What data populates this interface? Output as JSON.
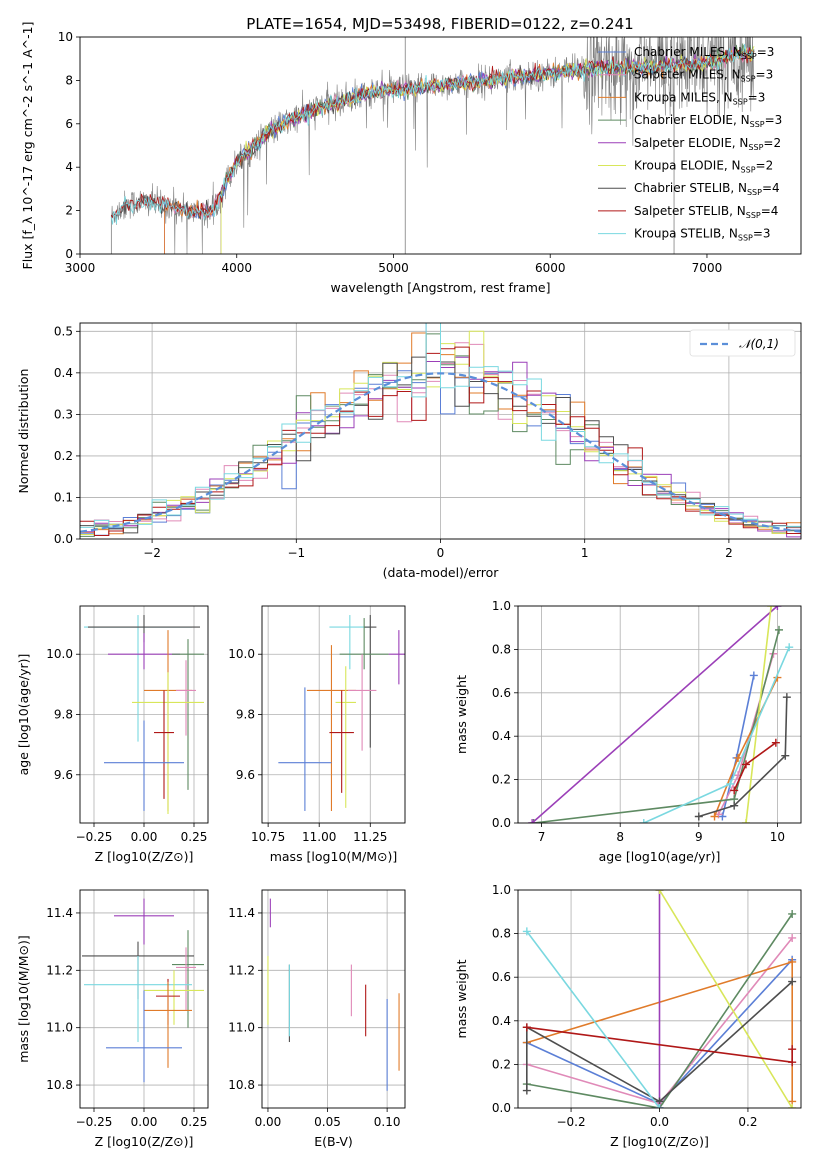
{
  "title": "PLATE=1654, MJD=53498, FIBERID=0122, z=0.241",
  "colors": {
    "chabrier_miles": "#5b7fd6",
    "salpeter_miles": "#e08ab8",
    "kroupa_miles": "#e07b2a",
    "chabrier_elodie": "#5e8a62",
    "salpeter_elodie": "#9b3fb8",
    "kroupa_elodie": "#d8e65a",
    "chabrier_stelib": "#4e4e4e",
    "salpeter_stelib": "#b01818",
    "kroupa_stelib": "#7ad8e0",
    "data_spectrum": "#808080",
    "normal_curve": "#5b8fd9",
    "grid": "#b0b0b0"
  },
  "chart_data": [
    {
      "id": "spectrum",
      "type": "line",
      "xlabel": "wavelength [Angstrom, rest frame]",
      "ylabel": "Flux [f_λ 10^-17 erg cm^-2 s^-1 A^-1]",
      "xlim": [
        3000,
        7600
      ],
      "ylim": [
        0,
        10
      ],
      "xticks": [
        "3000",
        "4000",
        "5000",
        "6000",
        "7000"
      ],
      "yticks": [
        "0",
        "2",
        "4",
        "6",
        "8",
        "10"
      ],
      "grid": false,
      "legend_position": "right",
      "legend": [
        "Chabrier MILES, N_SSP=3",
        "Salpeter MILES, N_SSP=3",
        "Kroupa MILES, N_SSP=3",
        "Chabrier ELODIE, N_SSP=3",
        "Salpeter ELODIE, N_SSP=2",
        "Kroupa ELODIE, N_SSP=2",
        "Chabrier STELIB, N_SSP=4",
        "Salpeter STELIB, N_SSP=4",
        "Kroupa STELIB, N_SSP=3"
      ],
      "model_continuum": {
        "x": [
          3200,
          3250,
          3300,
          3400,
          3500,
          3600,
          3700,
          3800,
          3850,
          3900,
          3950,
          4000,
          4100,
          4200,
          4300,
          4500,
          4700,
          4900,
          5100,
          5300,
          5500,
          5800,
          6000,
          6200,
          6400,
          6600,
          6800,
          7000,
          7200,
          7300
        ],
        "y": [
          1.7,
          2.0,
          2.3,
          2.4,
          2.3,
          2.2,
          2.0,
          1.9,
          2.0,
          2.8,
          3.6,
          4.2,
          4.9,
          5.6,
          6.0,
          6.7,
          7.1,
          7.5,
          7.6,
          7.8,
          7.9,
          8.2,
          8.3,
          8.5,
          8.6,
          8.6,
          8.7,
          8.8,
          9.2,
          9.3
        ]
      },
      "model_starts": {
        "Chabrier MILES": 3540,
        "Salpeter MILES": 3540,
        "Kroupa MILES": 3540,
        "Chabrier ELODIE": 3900,
        "Salpeter ELODIE": 3900,
        "Kroupa ELODIE": 3900,
        "Chabrier STELIB": 3200,
        "Salpeter STELIB": 3200,
        "Kroupa STELIB": 3200
      }
    },
    {
      "id": "residuals",
      "type": "bar",
      "xlabel": "(data-model)/error",
      "ylabel": "Normed distribution",
      "xlim": [
        -2.5,
        2.5
      ],
      "ylim": [
        0,
        0.52
      ],
      "xticks": [
        "−2",
        "−1",
        "0",
        "1",
        "2"
      ],
      "yticks": [
        "0.0",
        "0.1",
        "0.2",
        "0.3",
        "0.4",
        "0.5"
      ],
      "grid": true,
      "legend_position": "top-right",
      "legend": [
        "𝒩(0,1)"
      ],
      "bin_width": 0.1
    },
    {
      "id": "age_vs_z",
      "type": "scatter",
      "xlabel": "Z [log10(Z/Z⊙)]",
      "ylabel": "age [log10(age/yr)]",
      "xlim": [
        -0.32,
        0.32
      ],
      "ylim": [
        9.44,
        10.16
      ],
      "xticks": [
        "−0.25",
        "0.00",
        "0.25"
      ],
      "yticks": [
        "9.6",
        "9.8",
        "10.0"
      ],
      "grid": true,
      "points": [
        {
          "series": "Kroupa STELIB",
          "x": -0.03,
          "xerr": 0.27,
          "y": 10.09,
          "yerr": [
            0.38,
            0.04
          ]
        },
        {
          "series": "Chabrier STELIB",
          "x": 0.0,
          "xerr": 0.28,
          "y": 10.09,
          "yerr": [
            0.05,
            0.04
          ]
        },
        {
          "series": "Salpeter ELODIE",
          "x": 0.0,
          "xerr": 0.18,
          "y": 10.0,
          "yerr": [
            0.05,
            0.07
          ]
        },
        {
          "series": "Chabrier ELODIE",
          "x": 0.22,
          "xerr": 0.08,
          "y": 10.0,
          "yerr": [
            0.45,
            0.05
          ]
        },
        {
          "series": "Kroupa MILES",
          "x": 0.12,
          "xerr": 0.12,
          "y": 9.88,
          "yerr": [
            0.4,
            0.2
          ]
        },
        {
          "series": "Salpeter MILES",
          "x": 0.21,
          "xerr": 0.05,
          "y": 9.88,
          "yerr": [
            0.15,
            0.1
          ]
        },
        {
          "series": "Kroupa ELODIE",
          "x": 0.12,
          "xerr": 0.18,
          "y": 9.84,
          "yerr": [
            0.37,
            0.1
          ]
        },
        {
          "series": "Salpeter STELIB",
          "x": 0.1,
          "xerr": 0.05,
          "y": 9.74,
          "yerr": [
            0.22,
            0.14
          ]
        },
        {
          "series": "Chabrier MILES",
          "x": 0.0,
          "xerr": 0.2,
          "y": 9.64,
          "yerr": [
            0.16,
            0.14
          ]
        }
      ]
    },
    {
      "id": "age_vs_mass",
      "type": "scatter",
      "xlabel": "mass [log10(M/M⊙)]",
      "ylabel": "",
      "xlim": [
        10.72,
        11.42
      ],
      "ylim": [
        9.44,
        10.16
      ],
      "xticks": [
        "10.75",
        "11.00",
        "11.25"
      ],
      "yticks": [
        "9.6",
        "9.8",
        "10.0"
      ],
      "grid": true,
      "points": [
        {
          "series": "Kroupa STELIB",
          "x": 11.15,
          "xerr": 0.1,
          "y": 10.09,
          "yerr": [
            0.14,
            0.04
          ]
        },
        {
          "series": "Chabrier STELIB",
          "x": 11.25,
          "xerr": 0.03,
          "y": 10.09,
          "yerr": [
            0.4,
            0.04
          ]
        },
        {
          "series": "Salpeter ELODIE",
          "x": 11.39,
          "xerr": 0.05,
          "y": 10.0,
          "yerr": [
            0.1,
            0.08
          ]
        },
        {
          "series": "Chabrier ELODIE",
          "x": 11.22,
          "xerr": 0.12,
          "y": 10.0,
          "yerr": [
            0.05,
            0.12
          ]
        },
        {
          "series": "Kroupa MILES",
          "x": 11.06,
          "xerr": 0.12,
          "y": 9.88,
          "yerr": [
            0.4,
            0.15
          ]
        },
        {
          "series": "Salpeter MILES",
          "x": 11.21,
          "xerr": 0.07,
          "y": 9.88,
          "yerr": [
            0.2,
            0.12
          ]
        },
        {
          "series": "Kroupa ELODIE",
          "x": 11.13,
          "xerr": 0.05,
          "y": 9.84,
          "yerr": [
            0.35,
            0.12
          ]
        },
        {
          "series": "Salpeter STELIB",
          "x": 11.11,
          "xerr": 0.06,
          "y": 9.74,
          "yerr": [
            0.2,
            0.14
          ]
        },
        {
          "series": "Chabrier MILES",
          "x": 10.93,
          "xerr": 0.13,
          "y": 9.64,
          "yerr": [
            0.16,
            0.25
          ]
        }
      ]
    },
    {
      "id": "weight_vs_age",
      "type": "line",
      "xlabel": "age [log10(age/yr)]",
      "ylabel": "mass weight",
      "xlim": [
        6.7,
        10.3
      ],
      "ylim": [
        0,
        1
      ],
      "xticks": [
        "7",
        "8",
        "9",
        "10"
      ],
      "yticks": [
        "0.0",
        "0.2",
        "0.4",
        "0.6",
        "0.8",
        "1.0"
      ],
      "grid": true,
      "series": [
        {
          "name": "Chabrier MILES",
          "x": [
            9.3,
            9.48,
            9.7
          ],
          "y": [
            0.03,
            0.3,
            0.68
          ]
        },
        {
          "name": "Salpeter MILES",
          "x": [
            9.25,
            9.5,
            9.95
          ],
          "y": [
            0.04,
            0.22,
            0.78
          ]
        },
        {
          "name": "Kroupa MILES",
          "x": [
            9.2,
            9.5,
            10.0
          ],
          "y": [
            0.03,
            0.3,
            0.67
          ]
        },
        {
          "name": "Chabrier ELODIE",
          "x": [
            6.9,
            9.45,
            10.02
          ],
          "y": [
            0.0,
            0.11,
            0.89
          ]
        },
        {
          "name": "Salpeter ELODIE",
          "x": [
            6.88,
            10.0
          ],
          "y": [
            0.0,
            1.0
          ]
        },
        {
          "name": "Kroupa ELODIE",
          "x": [
            9.6,
            9.92
          ],
          "y": [
            0.0,
            1.0
          ]
        },
        {
          "name": "Chabrier STELIB",
          "x": [
            9.0,
            9.45,
            10.1,
            10.12
          ],
          "y": [
            0.03,
            0.08,
            0.31,
            0.58
          ]
        },
        {
          "name": "Salpeter STELIB",
          "x": [
            9.45,
            9.6,
            9.98
          ],
          "y": [
            0.15,
            0.27,
            0.37
          ]
        },
        {
          "name": "Kroupa STELIB",
          "x": [
            8.3,
            9.4,
            10.15
          ],
          "y": [
            0.0,
            0.18,
            0.81
          ]
        }
      ]
    },
    {
      "id": "mass_vs_z",
      "type": "scatter",
      "xlabel": "Z [log10(Z/Z⊙)]",
      "ylabel": "mass [log10(M/M⊙)]",
      "xlim": [
        -0.32,
        0.32
      ],
      "ylim": [
        10.72,
        11.48
      ],
      "xticks": [
        "−0.25",
        "0.00",
        "0.25"
      ],
      "yticks": [
        "10.8",
        "11.0",
        "11.2",
        "11.4"
      ],
      "grid": true,
      "points": [
        {
          "series": "Salpeter ELODIE",
          "x": 0.0,
          "xerr": 0.15,
          "y": 11.39,
          "yerr": [
            0.1,
            0.06
          ]
        },
        {
          "series": "Chabrier STELIB",
          "x": -0.03,
          "xerr": 0.28,
          "y": 11.25,
          "yerr": [
            0.15,
            0.05
          ]
        },
        {
          "series": "Chabrier ELODIE",
          "x": 0.22,
          "xerr": 0.08,
          "y": 11.22,
          "yerr": [
            0.22,
            0.12
          ]
        },
        {
          "series": "Salpeter MILES",
          "x": 0.21,
          "xerr": 0.05,
          "y": 11.21,
          "yerr": [
            0.15,
            0.07
          ]
        },
        {
          "series": "Kroupa STELIB",
          "x": -0.03,
          "xerr": 0.27,
          "y": 11.15,
          "yerr": [
            0.2,
            0.1
          ]
        },
        {
          "series": "Kroupa ELODIE",
          "x": 0.15,
          "xerr": 0.15,
          "y": 11.13,
          "yerr": [
            0.12,
            0.07
          ]
        },
        {
          "series": "Salpeter STELIB",
          "x": 0.12,
          "xerr": 0.06,
          "y": 11.11,
          "yerr": [
            0.1,
            0.06
          ]
        },
        {
          "series": "Kroupa MILES",
          "x": 0.12,
          "xerr": 0.12,
          "y": 11.06,
          "yerr": [
            0.2,
            0.1
          ]
        },
        {
          "series": "Chabrier MILES",
          "x": 0.0,
          "xerr": 0.19,
          "y": 10.93,
          "yerr": [
            0.12,
            0.2
          ]
        }
      ]
    },
    {
      "id": "mass_vs_ebv",
      "type": "scatter",
      "xlabel": "E(B-V)",
      "ylabel": "",
      "xlim": [
        -0.005,
        0.115
      ],
      "ylim": [
        10.72,
        11.48
      ],
      "xticks": [
        "0.00",
        "0.05",
        "0.10"
      ],
      "yticks": [
        "10.8",
        "11.0",
        "11.2",
        "11.4"
      ],
      "grid": true,
      "points": [
        {
          "series": "Salpeter ELODIE",
          "x": 0.002,
          "y": 11.39,
          "yerr": [
            0.04,
            0.06
          ]
        },
        {
          "series": "Kroupa ELODIE",
          "x": 0.0,
          "y": 11.13,
          "yerr": [
            0.12,
            0.12
          ]
        },
        {
          "series": "Chabrier STELIB",
          "x": 0.018,
          "y": 11.1,
          "yerr": [
            0.15,
            0.12
          ]
        },
        {
          "series": "Kroupa STELIB",
          "x": 0.018,
          "y": 11.12,
          "yerr": [
            0.15,
            0.1
          ]
        },
        {
          "series": "Salpeter MILES",
          "x": 0.07,
          "y": 11.12,
          "yerr": [
            0.08,
            0.1
          ]
        },
        {
          "series": "Salpeter STELIB",
          "x": 0.082,
          "y": 11.07,
          "yerr": [
            0.1,
            0.08
          ]
        },
        {
          "series": "Chabrier MILES",
          "x": 0.1,
          "y": 10.93,
          "yerr": [
            0.15,
            0.17
          ]
        },
        {
          "series": "Kroupa MILES",
          "x": 0.11,
          "y": 11.0,
          "yerr": [
            0.15,
            0.12
          ]
        }
      ]
    },
    {
      "id": "weight_vs_z",
      "type": "line",
      "xlabel": "Z [log10(Z/Z⊙)]",
      "ylabel": "mass weight",
      "xlim": [
        -0.32,
        0.32
      ],
      "ylim": [
        0,
        1
      ],
      "xticks": [
        "−0.2",
        "0.0",
        "0.2"
      ],
      "yticks": [
        "0.0",
        "0.2",
        "0.4",
        "0.6",
        "0.8",
        "1.0"
      ],
      "grid": true,
      "series": [
        {
          "name": "Chabrier MILES",
          "x": [
            -0.3,
            0.0,
            0.3
          ],
          "y": [
            0.3,
            0.02,
            0.68
          ]
        },
        {
          "name": "Salpeter MILES",
          "x": [
            -0.3,
            0.0,
            0.3
          ],
          "y": [
            0.2,
            0.02,
            0.78
          ]
        },
        {
          "name": "Kroupa MILES",
          "x": [
            -0.3,
            0.3,
            0.3
          ],
          "y": [
            0.3,
            0.67,
            0.03
          ]
        },
        {
          "name": "Chabrier ELODIE",
          "x": [
            -0.3,
            0.0,
            0.3
          ],
          "y": [
            0.11,
            0.0,
            0.89
          ]
        },
        {
          "name": "Salpeter ELODIE",
          "x": [
            0.0,
            0.0
          ],
          "y": [
            0.0,
            1.0
          ]
        },
        {
          "name": "Kroupa ELODIE",
          "x": [
            0.0,
            0.3
          ],
          "y": [
            1.0,
            0.0
          ]
        },
        {
          "name": "Chabrier STELIB",
          "x": [
            -0.3,
            -0.3,
            0.0,
            0.3
          ],
          "y": [
            0.08,
            0.37,
            0.03,
            0.58
          ]
        },
        {
          "name": "Salpeter STELIB",
          "x": [
            -0.3,
            0.3,
            0.3
          ],
          "y": [
            0.37,
            0.21,
            0.27
          ]
        },
        {
          "name": "Kroupa STELIB",
          "x": [
            -0.3,
            0.0
          ],
          "y": [
            0.81,
            0.0
          ]
        }
      ]
    }
  ]
}
